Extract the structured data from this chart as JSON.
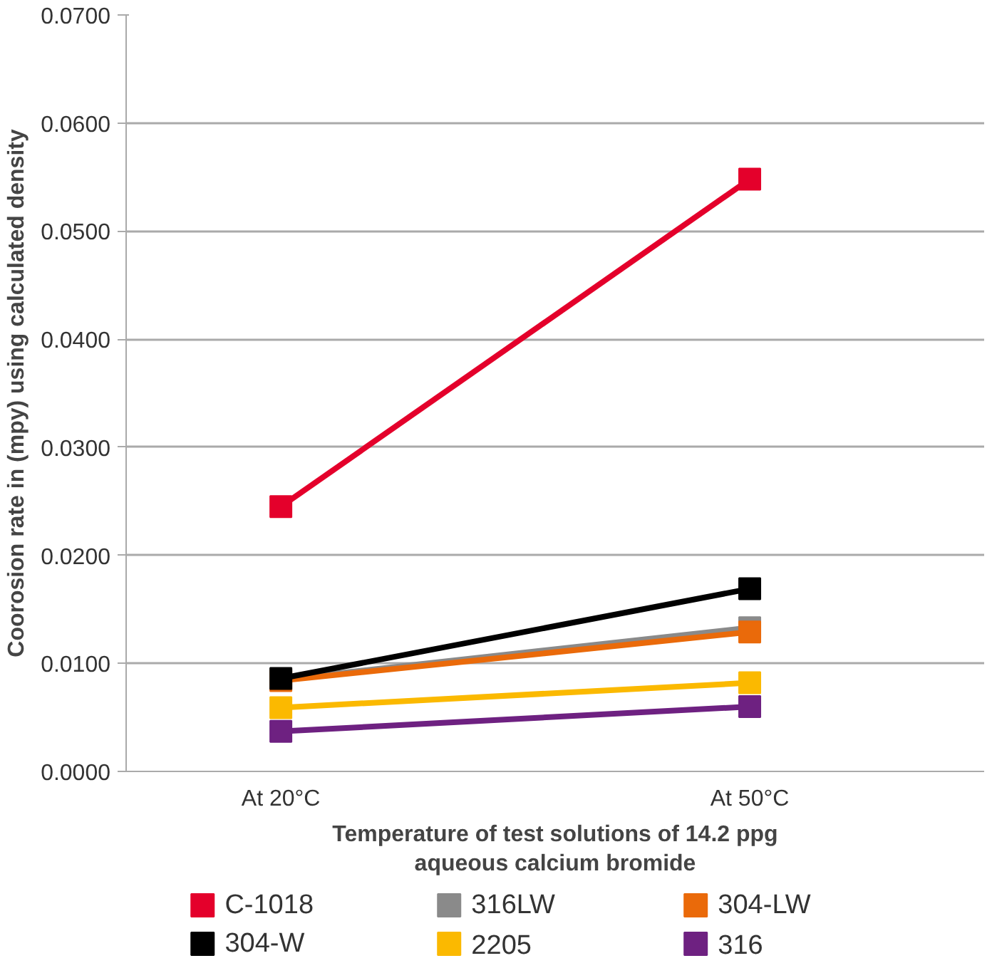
{
  "chart_data": {
    "type": "line",
    "xlabel": "Temperature of test solutions of 14.2 ppg\naqueous calcium bromide",
    "ylabel": "Coorosion rate in (mpy) using calculated density",
    "categories": [
      "At 20°C",
      "At 50°C"
    ],
    "series": [
      {
        "name": "C-1018",
        "color": "#e4002b",
        "values": [
          0.0245,
          0.0548
        ]
      },
      {
        "name": "316LW",
        "color": "#8a8a8a",
        "values": [
          0.0085,
          0.0133
        ]
      },
      {
        "name": "304-LW",
        "color": "#ea6a0a",
        "values": [
          0.0084,
          0.0129
        ]
      },
      {
        "name": "304-W",
        "color": "#000000",
        "values": [
          0.0086,
          0.0169
        ]
      },
      {
        "name": "2205",
        "color": "#fbb900",
        "values": [
          0.0059,
          0.0082
        ]
      },
      {
        "name": "316",
        "color": "#6e2181",
        "values": [
          0.0037,
          0.006
        ]
      }
    ],
    "ylim": [
      0,
      0.07
    ],
    "yticks": [
      {
        "value": 0,
        "label": "0.0000"
      },
      {
        "value": 0.01,
        "label": "0.0100"
      },
      {
        "value": 0.02,
        "label": "0.0200"
      },
      {
        "value": 0.03,
        "label": "0.0300"
      },
      {
        "value": 0.04,
        "label": "0.0400"
      },
      {
        "value": 0.05,
        "label": "0.0500"
      },
      {
        "value": 0.06,
        "label": "0.0600"
      },
      {
        "value": 0.07,
        "label": "0.0700"
      }
    ],
    "grid": "y",
    "legend": "bottom",
    "marker": "square",
    "line_style": "solid"
  }
}
